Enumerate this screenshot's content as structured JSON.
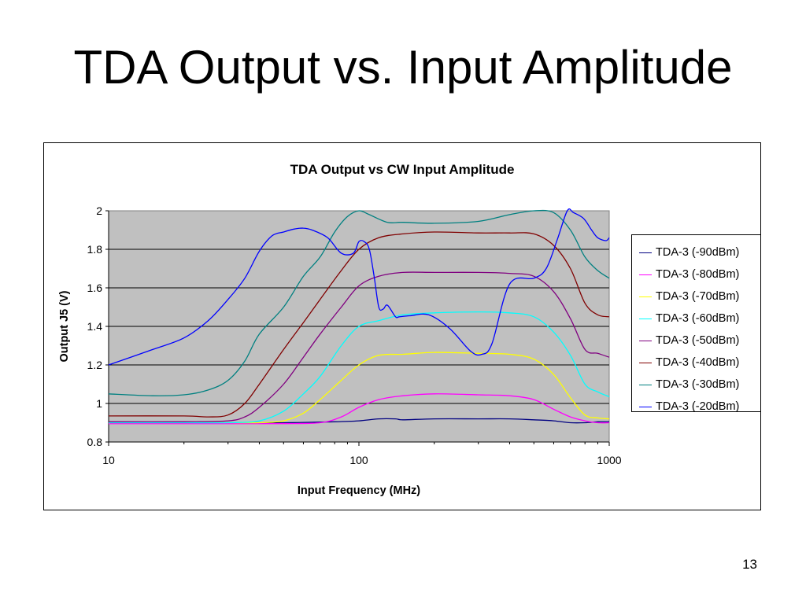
{
  "slide": {
    "title": "TDA Output vs. Input Amplitude",
    "page_number": "13"
  },
  "chart_data": {
    "type": "line",
    "title": "TDA Output vs CW Input Amplitude",
    "xlabel": "Input Frequency (MHz)",
    "ylabel": "Output J5 (V)",
    "x_scale": "log",
    "xlim": [
      10,
      1000
    ],
    "ylim": [
      0.8,
      2.0
    ],
    "x_ticks": [
      10,
      100,
      1000
    ],
    "y_ticks": [
      0.8,
      1,
      1.2,
      1.4,
      1.6,
      1.8,
      2
    ],
    "y_tick_labels": [
      "0.8",
      "1",
      "1.2",
      "1.4",
      "1.6",
      "1.8",
      "2"
    ],
    "x_tick_labels": [
      "10",
      "100",
      "1000"
    ],
    "grid": "horizontal",
    "plot_background": "#c0c0c0",
    "legend_position": "right",
    "series": [
      {
        "name": "TDA-3 (-90dBm)",
        "color": "#000080",
        "x": [
          10,
          20,
          30,
          50,
          80,
          100,
          120,
          140,
          150,
          200,
          300,
          400,
          500,
          600,
          700,
          800,
          900,
          1000
        ],
        "y": [
          0.9,
          0.9,
          0.9,
          0.9,
          0.905,
          0.91,
          0.92,
          0.92,
          0.915,
          0.92,
          0.92,
          0.92,
          0.915,
          0.91,
          0.9,
          0.9,
          0.905,
          0.905
        ]
      },
      {
        "name": "TDA-3 (-80dBm)",
        "color": "#ff00ff",
        "x": [
          10,
          20,
          30,
          50,
          70,
          85,
          100,
          120,
          150,
          200,
          300,
          400,
          500,
          600,
          700,
          800,
          900,
          1000
        ],
        "y": [
          0.895,
          0.895,
          0.895,
          0.895,
          0.9,
          0.93,
          0.98,
          1.02,
          1.04,
          1.05,
          1.045,
          1.04,
          1.02,
          0.97,
          0.93,
          0.91,
          0.9,
          0.9
        ]
      },
      {
        "name": "TDA-3 (-70dBm)",
        "color": "#ffff00",
        "x": [
          10,
          20,
          30,
          40,
          50,
          60,
          70,
          85,
          100,
          120,
          150,
          200,
          300,
          400,
          500,
          600,
          700,
          800,
          900,
          1000
        ],
        "y": [
          0.9,
          0.9,
          0.9,
          0.9,
          0.91,
          0.95,
          1.02,
          1.12,
          1.2,
          1.25,
          1.255,
          1.265,
          1.26,
          1.255,
          1.23,
          1.15,
          1.03,
          0.94,
          0.925,
          0.92
        ]
      },
      {
        "name": "TDA-3 (-60dBm)",
        "color": "#00ffff",
        "x": [
          10,
          20,
          30,
          40,
          50,
          60,
          70,
          85,
          100,
          120,
          150,
          200,
          300,
          400,
          500,
          600,
          700,
          800,
          900,
          1000
        ],
        "y": [
          0.9,
          0.9,
          0.9,
          0.91,
          0.96,
          1.05,
          1.14,
          1.3,
          1.4,
          1.43,
          1.46,
          1.47,
          1.475,
          1.47,
          1.45,
          1.37,
          1.25,
          1.1,
          1.06,
          1.035
        ]
      },
      {
        "name": "TDA-3 (-50dBm)",
        "color": "#800080",
        "x": [
          10,
          20,
          30,
          35,
          40,
          50,
          60,
          70,
          85,
          100,
          120,
          150,
          200,
          300,
          400,
          500,
          600,
          700,
          800,
          900,
          1000
        ],
        "y": [
          0.905,
          0.905,
          0.91,
          0.93,
          0.98,
          1.1,
          1.24,
          1.36,
          1.5,
          1.61,
          1.66,
          1.68,
          1.68,
          1.68,
          1.675,
          1.66,
          1.58,
          1.44,
          1.28,
          1.26,
          1.24
        ]
      },
      {
        "name": "TDA-3 (-40dBm)",
        "color": "#800000",
        "x": [
          10,
          20,
          25,
          30,
          35,
          40,
          50,
          60,
          70,
          85,
          100,
          120,
          150,
          200,
          300,
          400,
          500,
          600,
          700,
          800,
          900,
          1000
        ],
        "y": [
          0.935,
          0.935,
          0.93,
          0.94,
          1.0,
          1.1,
          1.28,
          1.42,
          1.54,
          1.69,
          1.8,
          1.86,
          1.88,
          1.89,
          1.885,
          1.885,
          1.88,
          1.82,
          1.7,
          1.52,
          1.46,
          1.45
        ]
      },
      {
        "name": "TDA-3 (-30dBm)",
        "color": "#008080",
        "x": [
          10,
          15,
          20,
          25,
          30,
          35,
          40,
          50,
          60,
          70,
          80,
          90,
          100,
          110,
          130,
          150,
          200,
          300,
          400,
          500,
          600,
          700,
          800,
          900,
          1000
        ],
        "y": [
          1.05,
          1.04,
          1.045,
          1.07,
          1.12,
          1.22,
          1.36,
          1.5,
          1.66,
          1.76,
          1.89,
          1.97,
          2.0,
          1.98,
          1.94,
          1.94,
          1.935,
          1.945,
          1.98,
          2.0,
          1.99,
          1.9,
          1.76,
          1.69,
          1.65
        ]
      },
      {
        "name": "TDA-3 (-20dBm)",
        "color": "#0000ff",
        "x": [
          10,
          15,
          20,
          25,
          30,
          35,
          40,
          45,
          50,
          55,
          60,
          65,
          75,
          85,
          95,
          100,
          105,
          110,
          115,
          120,
          125,
          130,
          140,
          145,
          160,
          190,
          230,
          280,
          310,
          340,
          400,
          500,
          560,
          620,
          680,
          720,
          790,
          850,
          900,
          970,
          1000
        ],
        "y": [
          1.2,
          1.28,
          1.34,
          1.43,
          1.54,
          1.65,
          1.79,
          1.87,
          1.89,
          1.905,
          1.91,
          1.9,
          1.86,
          1.78,
          1.78,
          1.84,
          1.84,
          1.8,
          1.66,
          1.5,
          1.49,
          1.51,
          1.45,
          1.45,
          1.455,
          1.46,
          1.39,
          1.27,
          1.255,
          1.31,
          1.62,
          1.65,
          1.7,
          1.85,
          2.0,
          1.99,
          1.96,
          1.9,
          1.86,
          1.845,
          1.86
        ]
      }
    ]
  }
}
